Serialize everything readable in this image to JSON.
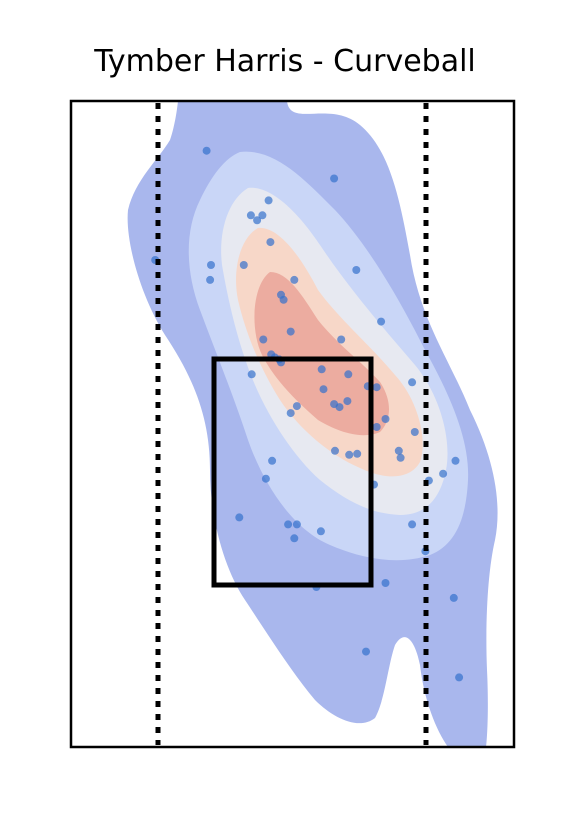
{
  "chart_data": {
    "type": "scatter",
    "title": "Tymber Harris - Curveball",
    "xlabel": "",
    "ylabel": "",
    "xlim": [
      -2.5,
      2.5
    ],
    "ylim": [
      -0.5,
      6.0
    ],
    "grid": false,
    "legend": "none",
    "strike_zone": {
      "x": [
        -0.88,
        0.88
      ],
      "y": [
        1.6,
        3.87
      ]
    },
    "plate_edge_lines_x": [
      -1.5,
      1.5
    ],
    "density_levels": [
      {
        "level": 1,
        "color": "#a9b7ed"
      },
      {
        "level": 2,
        "color": "#c9d6f7"
      },
      {
        "level": 3,
        "color": "#e7e9f1"
      },
      {
        "level": 4,
        "color": "#f7d7c8"
      },
      {
        "level": 5,
        "color": "#ecaca0"
      }
    ],
    "points": [
      {
        "x": -0.97,
        "y": 5.5
      },
      {
        "x": 0.47,
        "y": 5.22
      },
      {
        "x": -1.55,
        "y": 4.4
      },
      {
        "x": -0.92,
        "y": 4.35
      },
      {
        "x": -0.93,
        "y": 4.2
      },
      {
        "x": -0.55,
        "y": 4.35
      },
      {
        "x": -0.47,
        "y": 4.85
      },
      {
        "x": -0.4,
        "y": 4.8
      },
      {
        "x": -0.34,
        "y": 4.85
      },
      {
        "x": -0.27,
        "y": 5.0
      },
      {
        "x": -0.25,
        "y": 4.58
      },
      {
        "x": 0.02,
        "y": 4.2
      },
      {
        "x": 0.72,
        "y": 4.3
      },
      {
        "x": 1.0,
        "y": 3.78
      },
      {
        "x": -0.13,
        "y": 4.05
      },
      {
        "x": -0.1,
        "y": 4.0
      },
      {
        "x": -0.02,
        "y": 3.68
      },
      {
        "x": -0.33,
        "y": 3.6
      },
      {
        "x": 0.55,
        "y": 3.6
      },
      {
        "x": -0.24,
        "y": 3.45
      },
      {
        "x": -0.2,
        "y": 3.42
      },
      {
        "x": -0.15,
        "y": 3.4
      },
      {
        "x": -0.13,
        "y": 3.37
      },
      {
        "x": -0.46,
        "y": 3.25
      },
      {
        "x": 0.33,
        "y": 3.3
      },
      {
        "x": 0.63,
        "y": 3.25
      },
      {
        "x": 0.35,
        "y": 3.1
      },
      {
        "x": 0.95,
        "y": 3.12
      },
      {
        "x": 0.85,
        "y": 3.13
      },
      {
        "x": 1.35,
        "y": 3.17
      },
      {
        "x": 0.62,
        "y": 2.98
      },
      {
        "x": 0.95,
        "y": 2.72
      },
      {
        "x": 1.05,
        "y": 2.8
      },
      {
        "x": 0.53,
        "y": 2.92
      },
      {
        "x": 0.47,
        "y": 2.95
      },
      {
        "x": 0.05,
        "y": 2.93
      },
      {
        "x": -0.02,
        "y": 2.86
      },
      {
        "x": 1.38,
        "y": 2.67
      },
      {
        "x": 0.64,
        "y": 2.44
      },
      {
        "x": 0.73,
        "y": 2.45
      },
      {
        "x": 0.48,
        "y": 2.48
      },
      {
        "x": 1.2,
        "y": 2.48
      },
      {
        "x": 1.22,
        "y": 2.41
      },
      {
        "x": -0.23,
        "y": 2.38
      },
      {
        "x": 1.7,
        "y": 2.25
      },
      {
        "x": 1.84,
        "y": 2.38
      },
      {
        "x": -0.3,
        "y": 2.2
      },
      {
        "x": 0.92,
        "y": 2.14
      },
      {
        "x": 1.54,
        "y": 2.18
      },
      {
        "x": -0.6,
        "y": 1.81
      },
      {
        "x": 0.05,
        "y": 1.74
      },
      {
        "x": 1.35,
        "y": 1.74
      },
      {
        "x": -0.05,
        "y": 1.74
      },
      {
        "x": 0.32,
        "y": 1.67
      },
      {
        "x": 0.02,
        "y": 1.6
      },
      {
        "x": 1.5,
        "y": 1.47
      },
      {
        "x": 0.27,
        "y": 1.11
      },
      {
        "x": 1.05,
        "y": 1.15
      },
      {
        "x": 1.82,
        "y": 1.0
      },
      {
        "x": 0.83,
        "y": 0.46
      },
      {
        "x": 1.88,
        "y": 0.2
      }
    ]
  }
}
